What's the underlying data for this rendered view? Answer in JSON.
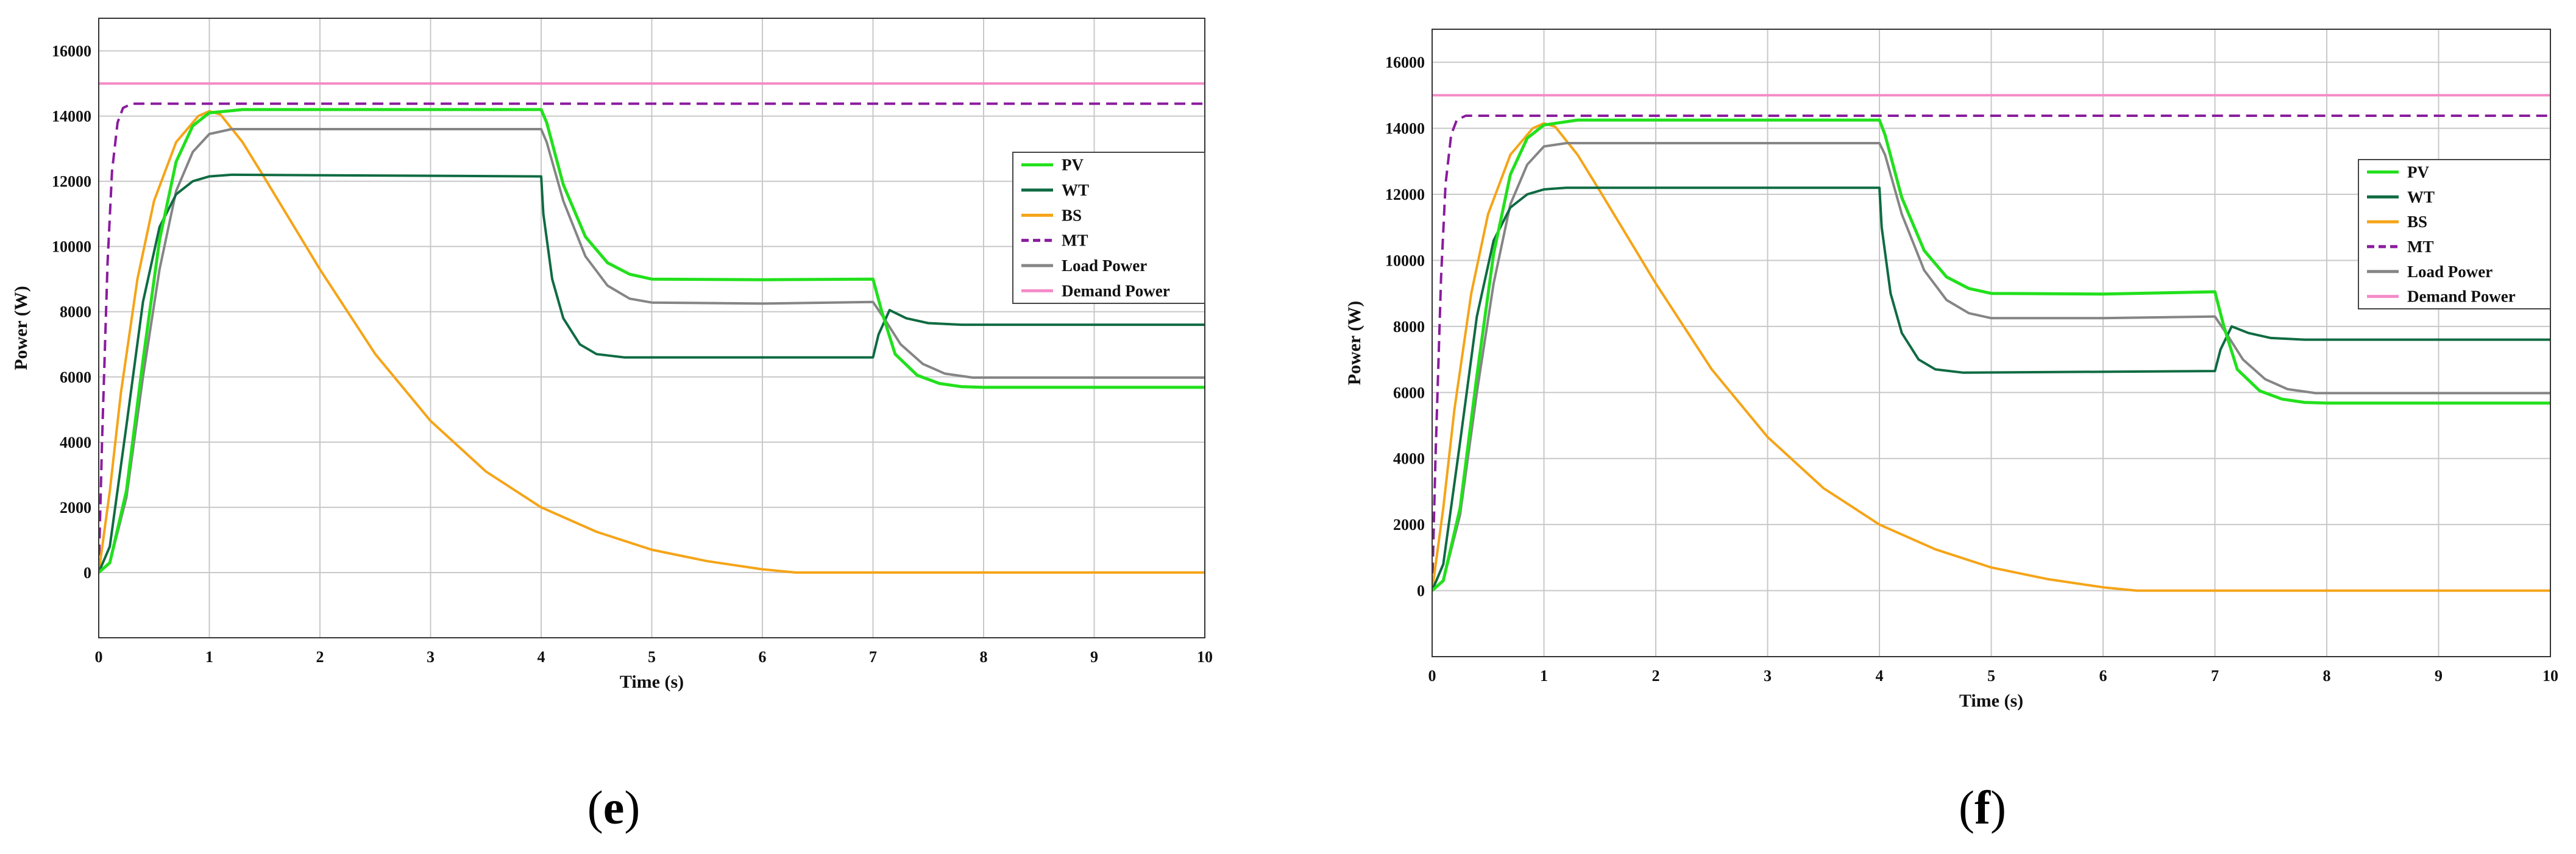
{
  "captions": [
    {
      "open": "(",
      "letter": "e",
      "close": ")"
    },
    {
      "open": "(",
      "letter": "f",
      "close": ")"
    }
  ],
  "chart_data": [
    {
      "type": "line",
      "xlabel": "Time (s)",
      "ylabel": "Power (W)",
      "xlim": [
        0,
        10
      ],
      "ylim": [
        -2000,
        17000
      ],
      "xticks": [
        0,
        1,
        2,
        3,
        4,
        5,
        6,
        7,
        8,
        9,
        10
      ],
      "yticks": [
        0,
        2000,
        4000,
        6000,
        8000,
        10000,
        12000,
        14000,
        16000
      ],
      "grid": true,
      "legend_position": "right",
      "series": [
        {
          "name": "PV",
          "color": "#22e01c",
          "dash": false,
          "points": [
            [
              0,
              0
            ],
            [
              0.1,
              300
            ],
            [
              0.25,
              2500
            ],
            [
              0.4,
              6500
            ],
            [
              0.55,
              10200
            ],
            [
              0.7,
              12600
            ],
            [
              0.85,
              13700
            ],
            [
              1.0,
              14100
            ],
            [
              1.3,
              14200
            ],
            [
              4.0,
              14200
            ],
            [
              4.05,
              13800
            ],
            [
              4.2,
              11900
            ],
            [
              4.4,
              10300
            ],
            [
              4.6,
              9500
            ],
            [
              4.8,
              9150
            ],
            [
              5.0,
              9000
            ],
            [
              6.0,
              8980
            ],
            [
              7.0,
              9000
            ],
            [
              7.08,
              8000
            ],
            [
              7.2,
              6700
            ],
            [
              7.4,
              6050
            ],
            [
              7.6,
              5800
            ],
            [
              7.8,
              5700
            ],
            [
              8.0,
              5680
            ],
            [
              10.0,
              5680
            ]
          ]
        },
        {
          "name": "WT",
          "color": "#0f6b42",
          "dash": false,
          "points": [
            [
              0,
              0
            ],
            [
              0.1,
              800
            ],
            [
              0.25,
              4500
            ],
            [
              0.4,
              8300
            ],
            [
              0.55,
              10600
            ],
            [
              0.7,
              11600
            ],
            [
              0.85,
              12000
            ],
            [
              1.0,
              12150
            ],
            [
              1.2,
              12200
            ],
            [
              4.0,
              12150
            ],
            [
              4.02,
              11000
            ],
            [
              4.1,
              9000
            ],
            [
              4.2,
              7800
            ],
            [
              4.35,
              7000
            ],
            [
              4.5,
              6700
            ],
            [
              4.75,
              6600
            ],
            [
              7.0,
              6600
            ],
            [
              7.05,
              7300
            ],
            [
              7.15,
              8050
            ],
            [
              7.3,
              7800
            ],
            [
              7.5,
              7650
            ],
            [
              7.8,
              7600
            ],
            [
              10.0,
              7600
            ]
          ]
        },
        {
          "name": "BS",
          "color": "#f5a417",
          "dash": false,
          "points": [
            [
              0,
              0
            ],
            [
              0.1,
              2500
            ],
            [
              0.2,
              5500
            ],
            [
              0.35,
              9000
            ],
            [
              0.5,
              11400
            ],
            [
              0.7,
              13200
            ],
            [
              0.9,
              14000
            ],
            [
              1.0,
              14150
            ],
            [
              1.1,
              14050
            ],
            [
              1.3,
              13200
            ],
            [
              1.5,
              12100
            ],
            [
              2.0,
              9300
            ],
            [
              2.5,
              6700
            ],
            [
              3.0,
              4650
            ],
            [
              3.5,
              3100
            ],
            [
              4.0,
              2000
            ],
            [
              4.5,
              1250
            ],
            [
              5.0,
              700
            ],
            [
              5.5,
              350
            ],
            [
              6.0,
              100
            ],
            [
              6.3,
              0
            ],
            [
              10.0,
              0
            ]
          ]
        },
        {
          "name": "MT",
          "color": "#8a1c9e",
          "dash": true,
          "points": [
            [
              0,
              0
            ],
            [
              0.03,
              4000
            ],
            [
              0.08,
              9500
            ],
            [
              0.12,
              12300
            ],
            [
              0.17,
              13800
            ],
            [
              0.22,
              14250
            ],
            [
              0.3,
              14380
            ],
            [
              10.0,
              14380
            ]
          ]
        },
        {
          "name": "Load Power",
          "color": "#858585",
          "dash": false,
          "points": [
            [
              0,
              0
            ],
            [
              0.1,
              300
            ],
            [
              0.25,
              2300
            ],
            [
              0.4,
              6000
            ],
            [
              0.55,
              9300
            ],
            [
              0.7,
              11700
            ],
            [
              0.85,
              12900
            ],
            [
              1.0,
              13450
            ],
            [
              1.2,
              13600
            ],
            [
              4.0,
              13600
            ],
            [
              4.05,
              13200
            ],
            [
              4.2,
              11400
            ],
            [
              4.4,
              9700
            ],
            [
              4.6,
              8800
            ],
            [
              4.8,
              8400
            ],
            [
              5.0,
              8280
            ],
            [
              6.0,
              8250
            ],
            [
              7.0,
              8300
            ],
            [
              7.1,
              7800
            ],
            [
              7.25,
              7000
            ],
            [
              7.45,
              6400
            ],
            [
              7.65,
              6100
            ],
            [
              7.9,
              5980
            ],
            [
              10.0,
              5980
            ]
          ]
        },
        {
          "name": "Demand Power",
          "color": "#f48bc7",
          "dash": false,
          "points": [
            [
              0,
              15000
            ],
            [
              10.0,
              15000
            ]
          ]
        }
      ]
    },
    {
      "type": "line",
      "xlabel": "Time (s)",
      "ylabel": "Power (W)",
      "xlim": [
        0,
        10
      ],
      "ylim": [
        -2000,
        17000
      ],
      "xticks": [
        0,
        1,
        2,
        3,
        4,
        5,
        6,
        7,
        8,
        9,
        10
      ],
      "yticks": [
        0,
        2000,
        4000,
        6000,
        8000,
        10000,
        12000,
        14000,
        16000
      ],
      "grid": true,
      "legend_position": "right",
      "series": [
        {
          "name": "PV",
          "color": "#22e01c",
          "dash": false,
          "points": [
            [
              0,
              0
            ],
            [
              0.1,
              300
            ],
            [
              0.25,
              2500
            ],
            [
              0.4,
              6500
            ],
            [
              0.55,
              10200
            ],
            [
              0.7,
              12600
            ],
            [
              0.85,
              13700
            ],
            [
              1.0,
              14100
            ],
            [
              1.3,
              14250
            ],
            [
              4.0,
              14250
            ],
            [
              4.05,
              13800
            ],
            [
              4.2,
              11900
            ],
            [
              4.4,
              10300
            ],
            [
              4.6,
              9500
            ],
            [
              4.8,
              9150
            ],
            [
              5.0,
              9000
            ],
            [
              6.0,
              8980
            ],
            [
              7.0,
              9050
            ],
            [
              7.08,
              8000
            ],
            [
              7.2,
              6700
            ],
            [
              7.4,
              6050
            ],
            [
              7.6,
              5800
            ],
            [
              7.8,
              5700
            ],
            [
              8.0,
              5680
            ],
            [
              10.0,
              5680
            ]
          ]
        },
        {
          "name": "WT",
          "color": "#0f6b42",
          "dash": false,
          "points": [
            [
              0,
              0
            ],
            [
              0.1,
              800
            ],
            [
              0.25,
              4500
            ],
            [
              0.4,
              8300
            ],
            [
              0.55,
              10600
            ],
            [
              0.7,
              11600
            ],
            [
              0.85,
              12000
            ],
            [
              1.0,
              12150
            ],
            [
              1.2,
              12200
            ],
            [
              4.0,
              12200
            ],
            [
              4.02,
              11000
            ],
            [
              4.1,
              9000
            ],
            [
              4.2,
              7800
            ],
            [
              4.35,
              7000
            ],
            [
              4.5,
              6700
            ],
            [
              4.75,
              6600
            ],
            [
              7.0,
              6650
            ],
            [
              7.05,
              7300
            ],
            [
              7.15,
              8000
            ],
            [
              7.3,
              7800
            ],
            [
              7.5,
              7650
            ],
            [
              7.8,
              7600
            ],
            [
              10.0,
              7600
            ]
          ]
        },
        {
          "name": "BS",
          "color": "#f5a417",
          "dash": false,
          "points": [
            [
              0,
              0
            ],
            [
              0.1,
              2500
            ],
            [
              0.2,
              5500
            ],
            [
              0.35,
              9000
            ],
            [
              0.5,
              11400
            ],
            [
              0.7,
              13200
            ],
            [
              0.9,
              14000
            ],
            [
              1.0,
              14150
            ],
            [
              1.1,
              14050
            ],
            [
              1.3,
              13200
            ],
            [
              1.5,
              12100
            ],
            [
              2.0,
              9300
            ],
            [
              2.5,
              6700
            ],
            [
              3.0,
              4650
            ],
            [
              3.5,
              3100
            ],
            [
              4.0,
              2000
            ],
            [
              4.5,
              1250
            ],
            [
              5.0,
              700
            ],
            [
              5.5,
              350
            ],
            [
              6.0,
              100
            ],
            [
              6.3,
              0
            ],
            [
              10.0,
              0
            ]
          ]
        },
        {
          "name": "MT",
          "color": "#8a1c9e",
          "dash": true,
          "points": [
            [
              0,
              0
            ],
            [
              0.03,
              4000
            ],
            [
              0.08,
              9500
            ],
            [
              0.12,
              12300
            ],
            [
              0.17,
              13800
            ],
            [
              0.22,
              14250
            ],
            [
              0.3,
              14380
            ],
            [
              10.0,
              14380
            ]
          ]
        },
        {
          "name": "Load Power",
          "color": "#858585",
          "dash": false,
          "points": [
            [
              0,
              0
            ],
            [
              0.1,
              300
            ],
            [
              0.25,
              2300
            ],
            [
              0.4,
              6000
            ],
            [
              0.55,
              9300
            ],
            [
              0.7,
              11700
            ],
            [
              0.85,
              12900
            ],
            [
              1.0,
              13450
            ],
            [
              1.2,
              13550
            ],
            [
              4.0,
              13550
            ],
            [
              4.05,
              13200
            ],
            [
              4.2,
              11400
            ],
            [
              4.4,
              9700
            ],
            [
              4.6,
              8800
            ],
            [
              4.8,
              8400
            ],
            [
              5.0,
              8250
            ],
            [
              6.0,
              8250
            ],
            [
              7.0,
              8300
            ],
            [
              7.1,
              7800
            ],
            [
              7.25,
              7000
            ],
            [
              7.45,
              6400
            ],
            [
              7.65,
              6100
            ],
            [
              7.9,
              5980
            ],
            [
              10.0,
              5980
            ]
          ]
        },
        {
          "name": "Demand Power",
          "color": "#f48bc7",
          "dash": false,
          "points": [
            [
              0,
              15000
            ],
            [
              10.0,
              15000
            ]
          ]
        }
      ]
    }
  ]
}
